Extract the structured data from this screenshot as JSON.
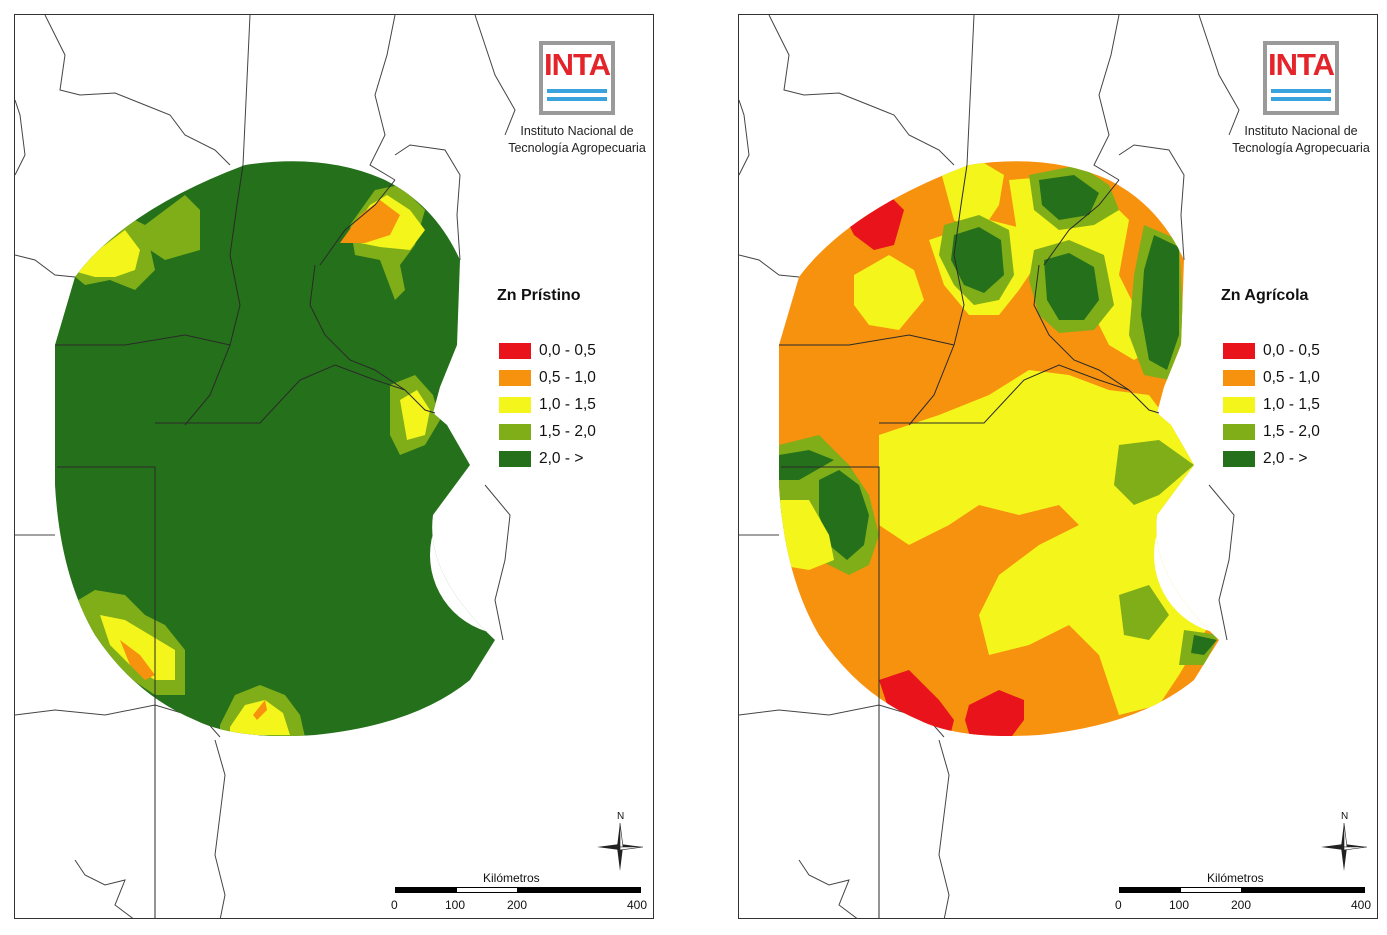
{
  "maps": [
    {
      "id": "pristino",
      "legend_title": "Zn Prístino",
      "dominant_class": "2,0 - >"
    },
    {
      "id": "agricola",
      "legend_title": "Zn Agrícola",
      "dominant_class": "0,5 - 1,0"
    }
  ],
  "logo": {
    "brand": "INTA",
    "caption_line1": "Instituto Nacional de",
    "caption_line2": "Tecnología Agropecuaria"
  },
  "legend": {
    "classes": [
      {
        "label": "0,0 - 0,5",
        "color": "#e8131b"
      },
      {
        "label": "0,5 - 1,0",
        "color": "#f7920f"
      },
      {
        "label": "1,0 - 1,5",
        "color": "#f4f51a"
      },
      {
        "label": "1,5 - 2,0",
        "color": "#7fae19"
      },
      {
        "label": "2,0 -  >",
        "color": "#25701a"
      }
    ]
  },
  "scale": {
    "title": "Kilómetros",
    "ticks": [
      "0",
      "100",
      "200",
      "400"
    ]
  },
  "north_label": "N"
}
